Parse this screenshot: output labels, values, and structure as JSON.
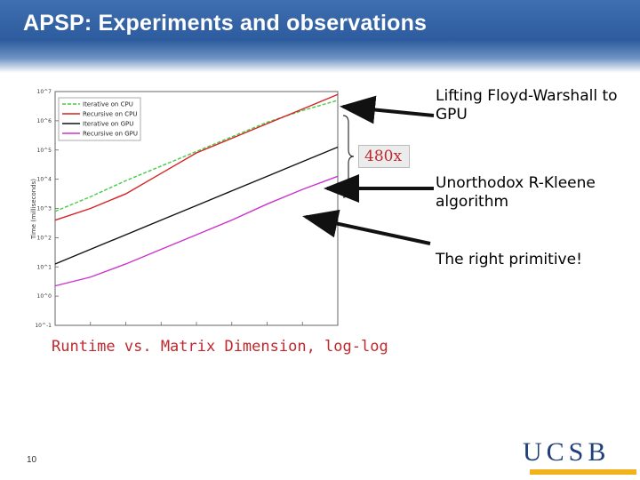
{
  "slide": {
    "title": "APSP: Experiments and observations",
    "caption": "Runtime vs. Matrix Dimension,  log-log",
    "slide_number": "10",
    "logo_text": "UCSB",
    "factor_label": "480x",
    "notes": {
      "floyd": "Lifting Floyd-Warshall to GPU",
      "kleene": "Unorthodox R-Kleene algorithm",
      "primitive": "The right primitive!"
    }
  },
  "chart_data": {
    "type": "line",
    "title": "",
    "xlabel": "",
    "ylabel": "Time (milliseconds)",
    "x_scale": "log",
    "y_scale": "log",
    "xlim": [
      0,
      8
    ],
    "ylim": [
      -1,
      7
    ],
    "x_ticks": [
      0,
      1,
      2,
      3,
      4,
      5,
      6,
      7,
      8
    ],
    "x_tick_labels": [
      "",
      "",
      "",
      "",
      "",
      "",
      "",
      "",
      ""
    ],
    "y_tick_labels": [
      "10^-1",
      "10^0",
      "10^1",
      "10^2",
      "10^3",
      "10^4",
      "10^5",
      "10^6",
      "10^7"
    ],
    "legend_placement": "top-left",
    "series": [
      {
        "name": "Iterative on CPU",
        "color": "#44cc44",
        "dashed": true,
        "x": [
          0,
          1,
          2,
          3,
          4,
          5,
          6,
          7,
          8
        ],
        "y": [
          2.9,
          3.4,
          3.95,
          4.45,
          4.95,
          5.45,
          5.95,
          6.35,
          6.7
        ]
      },
      {
        "name": "Recursive on CPU",
        "color": "#d62222",
        "dashed": false,
        "x": [
          0,
          1,
          2,
          3,
          4,
          5,
          6,
          7,
          8
        ],
        "y": [
          2.6,
          3.0,
          3.5,
          4.2,
          4.9,
          5.4,
          5.9,
          6.4,
          6.9
        ]
      },
      {
        "name": "Iterative on GPU",
        "color": "#111111",
        "dashed": false,
        "x": [
          0,
          1,
          2,
          3,
          4,
          5,
          6,
          7,
          8
        ],
        "y": [
          1.1,
          1.6,
          2.1,
          2.6,
          3.1,
          3.6,
          4.1,
          4.6,
          5.1
        ]
      },
      {
        "name": "Recursive on GPU",
        "color": "#cc33cc",
        "dashed": false,
        "x": [
          0,
          1,
          2,
          3,
          4,
          5,
          6,
          7,
          8
        ],
        "y": [
          0.35,
          0.65,
          1.1,
          1.6,
          2.1,
          2.6,
          3.15,
          3.65,
          4.1
        ]
      }
    ]
  }
}
